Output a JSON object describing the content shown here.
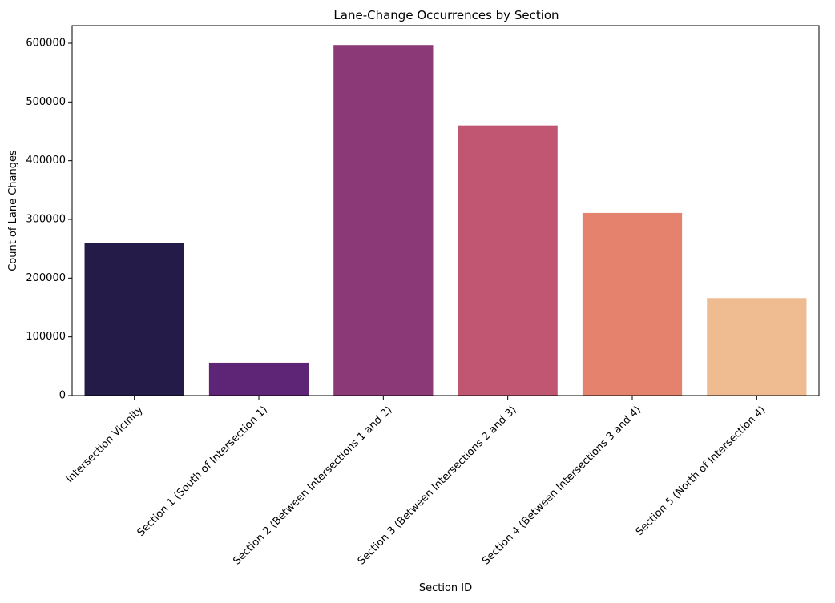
{
  "chart_data": {
    "type": "bar",
    "title": "Lane-Change Occurrences by Section",
    "xlabel": "Section ID",
    "ylabel": "Count of Lane Changes",
    "categories": [
      "Intersection Vicinity",
      "Section 1 (South of Intersection 1)",
      "Section 2 (Between Intersections 1 and 2)",
      "Section 3 (Between Intersections 2 and 3)",
      "Section 4 (Between Intersections 3 and 4)",
      "Section 5 (North of Intersection 4)"
    ],
    "values": [
      260000,
      56000,
      597000,
      460000,
      311000,
      166000
    ],
    "colors": [
      "#251b48",
      "#5e2475",
      "#8b3977",
      "#c15673",
      "#e5826d",
      "#efbb90"
    ],
    "ylim": [
      0,
      630000
    ],
    "yticks": [
      0,
      100000,
      200000,
      300000,
      400000,
      500000,
      600000
    ],
    "ytick_labels": [
      "0",
      "100000",
      "200000",
      "300000",
      "400000",
      "500000",
      "600000"
    ],
    "grid": false,
    "legend": "none"
  }
}
